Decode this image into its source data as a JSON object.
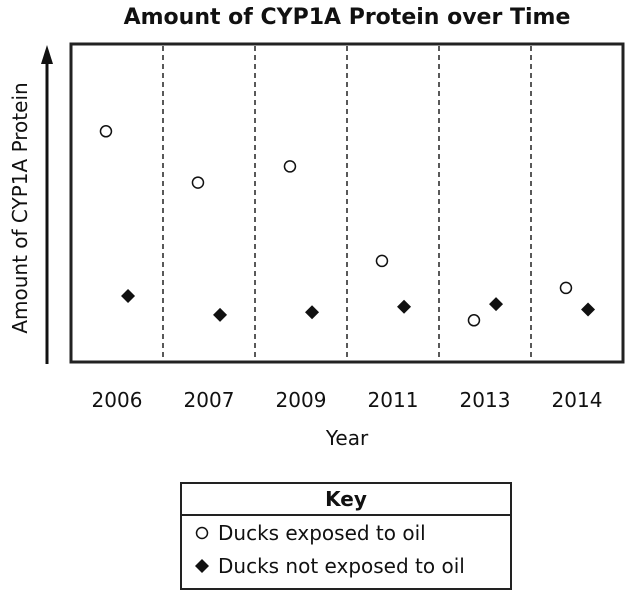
{
  "chart_data": {
    "type": "scatter",
    "title": "Amount of CYP1A Protein over Time",
    "xlabel": "Year",
    "ylabel": "Amount of CYP1A Protein",
    "categories": [
      "2006",
      "2007",
      "2009",
      "2011",
      "2013",
      "2014"
    ],
    "ylim": [
      0,
      100
    ],
    "grid": "vertical dashed separators between years",
    "series": [
      {
        "name": "Ducks exposed to oil",
        "marker": "open-circle",
        "values": [
          81,
          62,
          68,
          33,
          11,
          23
        ]
      },
      {
        "name": "Ducks not exposed to oil",
        "marker": "filled-diamond",
        "values": [
          20,
          13,
          14,
          16,
          17,
          15
        ]
      }
    ],
    "legend": {
      "title": "Key",
      "placement": "bottom-center"
    }
  },
  "colors": {
    "ink": "#111111",
    "background": "#ffffff"
  }
}
